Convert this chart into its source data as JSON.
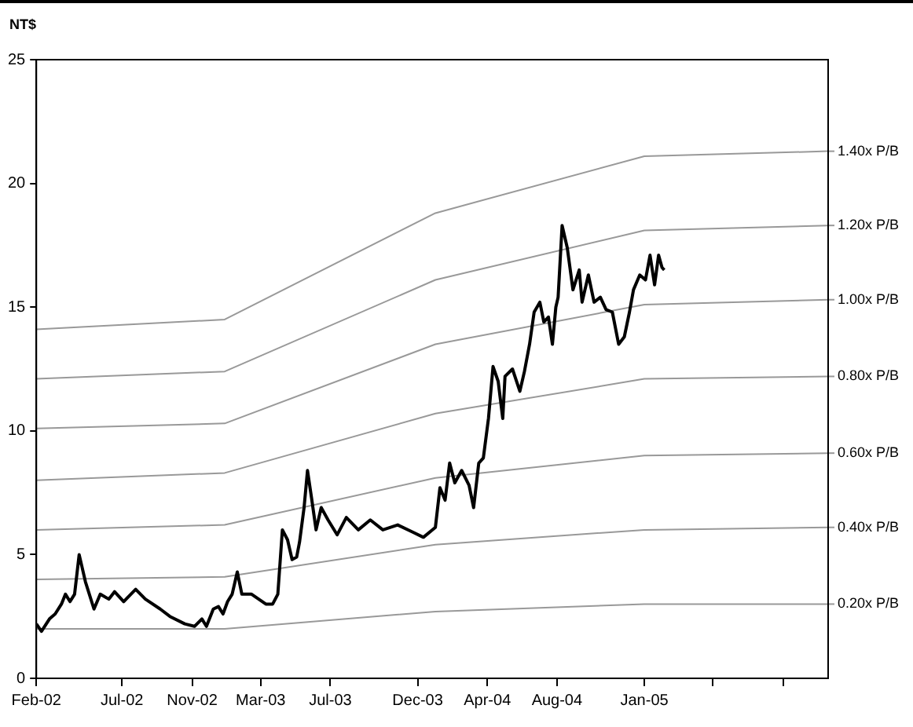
{
  "chart_data": {
    "type": "line",
    "ylabel": "NT$",
    "xlim": [
      "2002-02-01",
      "2005-11-19"
    ],
    "xticks": [
      {
        "value": "2002-02-01",
        "label": "Feb-02"
      },
      {
        "value": "2002-07-01",
        "label": "Jul-02"
      },
      {
        "value": "2002-11-01",
        "label": "Nov-02"
      },
      {
        "value": "2003-03-01",
        "label": "Mar-03"
      },
      {
        "value": "2003-07-01",
        "label": "Jul-03"
      },
      {
        "value": "2003-12-01",
        "label": "Dec-03"
      },
      {
        "value": "2004-04-01",
        "label": "Apr-04"
      },
      {
        "value": "2004-08-01",
        "label": "Aug-04"
      },
      {
        "value": "2005-01-01",
        "label": "Jan-05"
      },
      {
        "value": "2005-05-01",
        "label": null
      },
      {
        "value": "2005-09-01",
        "label": null
      }
    ],
    "ylim": [
      0,
      25
    ],
    "yticks": [
      0,
      5,
      10,
      15,
      20,
      25
    ],
    "grid": false,
    "legend": "right",
    "marker": "none",
    "line_style": "solid",
    "series": [
      {
        "color": "#000000",
        "x": [
          "2002-02-01",
          "2002-02-10",
          "2002-02-24",
          "2002-03-06",
          "2002-03-17",
          "2002-03-24",
          "2002-04-01",
          "2002-04-09",
          "2002-04-17",
          "2002-04-28",
          "2002-05-13",
          "2002-05-24",
          "2002-06-08",
          "2002-06-18",
          "2002-07-04",
          "2002-07-25",
          "2002-08-11",
          "2002-09-06",
          "2002-09-23",
          "2002-10-19",
          "2002-11-05",
          "2002-11-18",
          "2002-11-26",
          "2002-12-08",
          "2002-12-17",
          "2002-12-25",
          "2003-01-02",
          "2003-01-10",
          "2003-01-19",
          "2003-01-27",
          "2003-02-13",
          "2003-03-10",
          "2003-03-22",
          "2003-03-31",
          "2003-04-08",
          "2003-04-17",
          "2003-04-25",
          "2003-05-03",
          "2003-05-08",
          "2003-05-16",
          "2003-05-22",
          "2003-05-29",
          "2003-06-06",
          "2003-06-15",
          "2003-06-27",
          "2003-07-13",
          "2003-07-29",
          "2003-08-19",
          "2003-09-09",
          "2003-10-01",
          "2003-10-27",
          "2003-11-23",
          "2003-12-11",
          "2004-01-01",
          "2004-01-09",
          "2004-01-18",
          "2004-01-26",
          "2004-02-04",
          "2004-02-16",
          "2004-02-29",
          "2004-03-08",
          "2004-03-17",
          "2004-03-25",
          "2004-04-03",
          "2004-04-11",
          "2004-04-20",
          "2004-04-28",
          "2004-05-02",
          "2004-05-15",
          "2004-05-28",
          "2004-06-05",
          "2004-06-14",
          "2004-06-22",
          "2004-07-02",
          "2004-07-09",
          "2004-07-17",
          "2004-07-24",
          "2004-07-30",
          "2004-08-03",
          "2004-08-10",
          "2004-08-19",
          "2004-08-29",
          "2004-09-09",
          "2004-09-14",
          "2004-09-25",
          "2004-10-05",
          "2004-10-16",
          "2004-10-26",
          "2004-11-06",
          "2004-11-17",
          "2004-11-27",
          "2004-12-06",
          "2004-12-13",
          "2004-12-24",
          "2005-01-03",
          "2005-01-11",
          "2005-01-19",
          "2005-01-26",
          "2005-02-01",
          "2005-02-05"
        ],
        "values": [
          2.2,
          1.9,
          2.4,
          2.6,
          3.0,
          3.4,
          3.1,
          3.4,
          5.0,
          3.9,
          2.8,
          3.4,
          3.2,
          3.5,
          3.1,
          3.6,
          3.2,
          2.8,
          2.5,
          2.2,
          2.1,
          2.4,
          2.1,
          2.8,
          2.9,
          2.6,
          3.1,
          3.4,
          4.3,
          3.4,
          3.4,
          3.0,
          3.0,
          3.4,
          6.0,
          5.6,
          4.8,
          4.9,
          5.5,
          6.9,
          8.4,
          7.3,
          6.0,
          6.9,
          6.4,
          5.8,
          6.5,
          6.0,
          6.4,
          6.0,
          6.2,
          5.9,
          5.7,
          6.1,
          7.7,
          7.2,
          8.7,
          7.9,
          8.4,
          7.8,
          6.9,
          8.7,
          8.9,
          10.5,
          12.6,
          12.0,
          10.5,
          12.2,
          12.5,
          11.6,
          12.4,
          13.5,
          14.8,
          15.2,
          14.4,
          14.6,
          13.5,
          15.0,
          15.4,
          18.3,
          17.4,
          15.7,
          16.5,
          15.2,
          16.3,
          15.2,
          15.4,
          14.9,
          14.8,
          13.5,
          13.8,
          14.8,
          15.7,
          16.3,
          16.1,
          17.1,
          15.9,
          17.1,
          16.6,
          16.5
        ]
      },
      {
        "name": "1.40x P/B",
        "color": "#999999",
        "x": [
          "2002-02-01",
          "2002-12-28",
          "2004-01-01",
          "2005-01-01",
          "2005-11-19"
        ],
        "values": [
          14.1,
          14.5,
          18.8,
          21.1,
          21.3
        ]
      },
      {
        "name": "1.20x P/B",
        "color": "#999999",
        "x": [
          "2002-02-01",
          "2002-12-28",
          "2004-01-01",
          "2005-01-01",
          "2005-11-19"
        ],
        "values": [
          12.1,
          12.4,
          16.1,
          18.1,
          18.3
        ]
      },
      {
        "name": "1.00x P/B",
        "color": "#999999",
        "x": [
          "2002-02-01",
          "2002-12-28",
          "2004-01-01",
          "2005-01-01",
          "2005-11-19"
        ],
        "values": [
          10.1,
          10.3,
          13.5,
          15.1,
          15.3
        ]
      },
      {
        "name": "0.80x P/B",
        "color": "#999999",
        "x": [
          "2002-02-01",
          "2002-12-28",
          "2004-01-01",
          "2005-01-01",
          "2005-11-19"
        ],
        "values": [
          8.0,
          8.3,
          10.7,
          12.1,
          12.2
        ]
      },
      {
        "name": "0.60x P/B",
        "color": "#999999",
        "x": [
          "2002-02-01",
          "2002-12-28",
          "2004-01-01",
          "2005-01-01",
          "2005-11-19"
        ],
        "values": [
          6.0,
          6.2,
          8.1,
          9.0,
          9.1
        ]
      },
      {
        "name": "0.40x P/B",
        "color": "#999999",
        "x": [
          "2002-02-01",
          "2002-12-28",
          "2004-01-01",
          "2005-01-01",
          "2005-11-19"
        ],
        "values": [
          4.0,
          4.1,
          5.4,
          6.0,
          6.1
        ]
      },
      {
        "name": "0.20x P/B",
        "color": "#999999",
        "x": [
          "2002-02-01",
          "2002-12-28",
          "2004-01-01",
          "2005-01-01",
          "2005-11-19"
        ],
        "values": [
          2.0,
          2.0,
          2.7,
          3.0,
          3.0
        ]
      }
    ]
  }
}
